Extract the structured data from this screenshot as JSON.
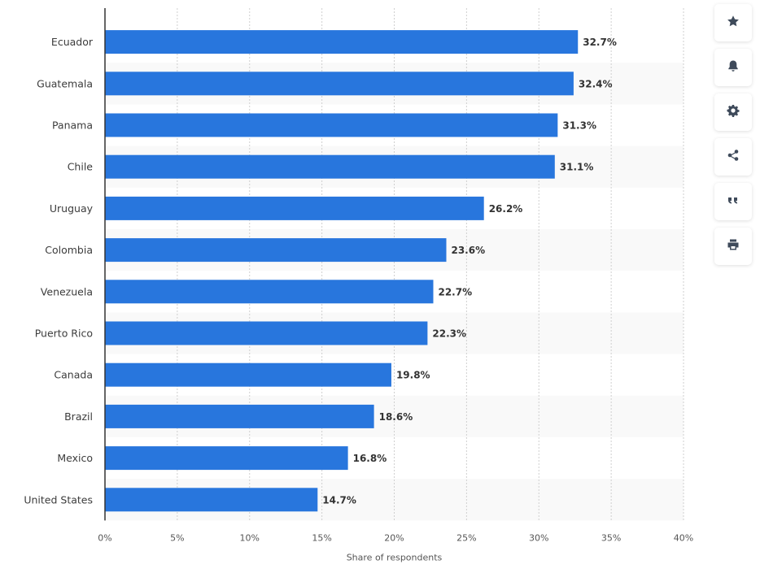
{
  "chart_data": {
    "type": "bar",
    "orientation": "horizontal",
    "categories": [
      "Ecuador",
      "Guatemala",
      "Panama",
      "Chile",
      "Uruguay",
      "Colombia",
      "Venezuela",
      "Puerto Rico",
      "Canada",
      "Brazil",
      "Mexico",
      "United States"
    ],
    "values": [
      32.7,
      32.4,
      31.3,
      31.1,
      26.2,
      23.6,
      22.7,
      22.3,
      19.8,
      18.6,
      16.8,
      14.7
    ],
    "value_labels": [
      "32.7%",
      "32.4%",
      "31.3%",
      "31.1%",
      "26.2%",
      "23.6%",
      "22.7%",
      "22.3%",
      "19.8%",
      "18.6%",
      "16.8%",
      "14.7%"
    ],
    "xlabel": "Share of respondents",
    "ylabel": "",
    "xlim": [
      0,
      40
    ],
    "x_ticks": [
      0,
      5,
      10,
      15,
      20,
      25,
      30,
      35,
      40
    ],
    "x_tick_labels": [
      "0%",
      "5%",
      "10%",
      "15%",
      "20%",
      "25%",
      "30%",
      "35%",
      "40%"
    ],
    "grid": true,
    "bar_color": "#2876dd",
    "stripe_color": "#f9f9f9"
  },
  "toolbar": {
    "buttons": [
      {
        "name": "favorite-button",
        "icon": "star-icon"
      },
      {
        "name": "notification-button",
        "icon": "bell-icon"
      },
      {
        "name": "settings-button",
        "icon": "gear-icon"
      },
      {
        "name": "share-button",
        "icon": "share-icon"
      },
      {
        "name": "cite-button",
        "icon": "quote-icon"
      },
      {
        "name": "print-button",
        "icon": "printer-icon"
      }
    ]
  }
}
